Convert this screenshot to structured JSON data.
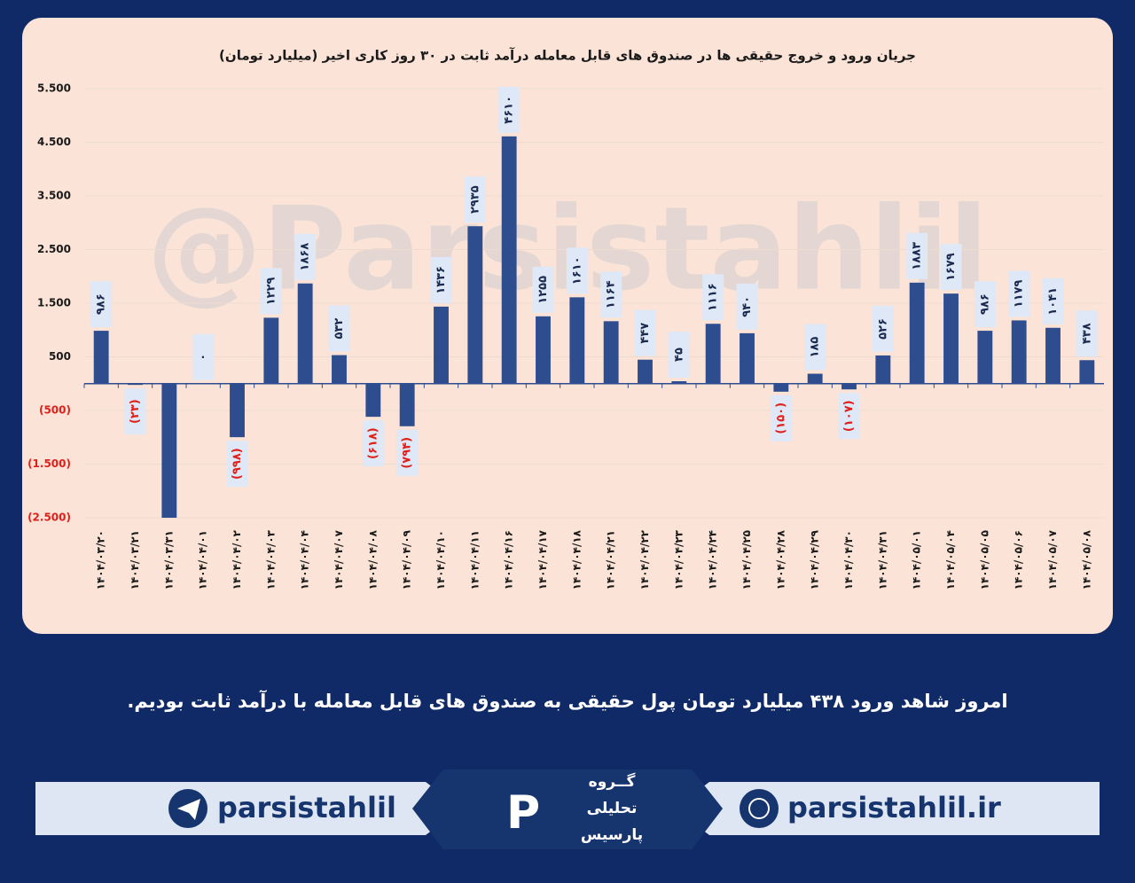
{
  "chart_data": {
    "type": "bar",
    "title": "جریان ورود و خروج حقیقی ها در صندوق های قابل معامله درآمد ثابت در ۳۰ روز کاری اخیر (میلیارد تومان)",
    "watermark": "@Parsistahlil",
    "categories": [
      "۱۴۰۴/۰۳/۲۰",
      "۱۴۰۴/۰۳/۲۱",
      "۱۴۰۴/۰۳/۳۱",
      "۱۴۰۴/۰۴/۰۱",
      "۱۴۰۴/۰۴/۰۲",
      "۱۴۰۴/۰۴/۰۳",
      "۱۴۰۴/۰۴/۰۴",
      "۱۴۰۴/۰۴/۰۷",
      "۱۴۰۴/۰۴/۰۸",
      "۱۴۰۴/۰۴/۰۹",
      "۱۴۰۴/۰۴/۱۰",
      "۱۴۰۴/۰۴/۱۱",
      "۱۴۰۴/۰۴/۱۶",
      "۱۴۰۴/۰۴/۱۷",
      "۱۴۰۴/۰۴/۱۸",
      "۱۴۰۴/۰۴/۲۱",
      "۱۴۰۴/۰۴/۲۲",
      "۱۴۰۴/۰۴/۲۳",
      "۱۴۰۴/۰۴/۲۴",
      "۱۴۰۴/۰۴/۲۵",
      "۱۴۰۴/۰۴/۲۸",
      "۱۴۰۴/۰۴/۲۹",
      "۱۴۰۴/۰۴/۳۰",
      "۱۴۰۴/۰۴/۳۱",
      "۱۴۰۴/۰۵/۰۱",
      "۱۴۰۴/۰۵/۰۴",
      "۱۴۰۴/۰۵/۰۵",
      "۱۴۰۴/۰۵/۰۶",
      "۱۴۰۴/۰۵/۰۷",
      "۱۴۰۴/۰۵/۰۸"
    ],
    "values": [
      986,
      -23,
      -2500,
      0,
      -998,
      1229,
      1868,
      532,
      -618,
      -794,
      1436,
      2935,
      4610,
      1255,
      1610,
      1164,
      447,
      45,
      1116,
      940,
      -150,
      185,
      -107,
      526,
      1883,
      1679,
      986,
      1179,
      1041,
      438
    ],
    "value_labels": [
      "۹۸۶",
      "(۲۳)",
      null,
      "۰",
      "(۹۹۸)",
      "۱۲۲۹",
      "۱۸۶۸",
      "۵۳۲",
      "(۶۱۸)",
      "(۷۹۴)",
      "۱۴۳۶",
      "۲۹۳۵",
      "۴۶۱۰",
      "۱۲۵۵",
      "۱۶۱۰",
      "۱۱۶۴",
      "۴۴۷",
      "۴۵",
      "۱۱۱۶",
      "۹۴۰",
      "(۱۵۰)",
      "۱۸۵",
      "(۱۰۷)",
      "۵۲۶",
      "۱۸۸۳",
      "۱۶۷۹",
      "۹۸۶",
      "۱۱۷۹",
      "۱۰۴۱",
      "۴۳۸"
    ],
    "color": "#2e4d8f",
    "negative_label_color": "#e0201b",
    "ylim": [
      -2500,
      5500
    ],
    "yticks": [
      {
        "value": 5500,
        "label": "5.500"
      },
      {
        "value": 4500,
        "label": "4.500"
      },
      {
        "value": 3500,
        "label": "3.500"
      },
      {
        "value": 2500,
        "label": "2.500"
      },
      {
        "value": 1500,
        "label": "1.500"
      },
      500,
      {
        "value": -500,
        "label": "(500)"
      },
      {
        "value": -1500,
        "label": "(1.500)"
      },
      {
        "value": -2500,
        "label": "(2.500)"
      }
    ],
    "grid": true
  },
  "caption": "امروز شاهد ورود ۴۳۸ میلیارد تومان پول حقیقی به صندوق های قابل معامله با درآمد ثابت بودیم.",
  "footer": {
    "telegram": "parsistahlil",
    "website": "parsistahlil.ir",
    "logo": [
      "گــروه",
      "تحلیلی",
      "پارسیس"
    ]
  }
}
